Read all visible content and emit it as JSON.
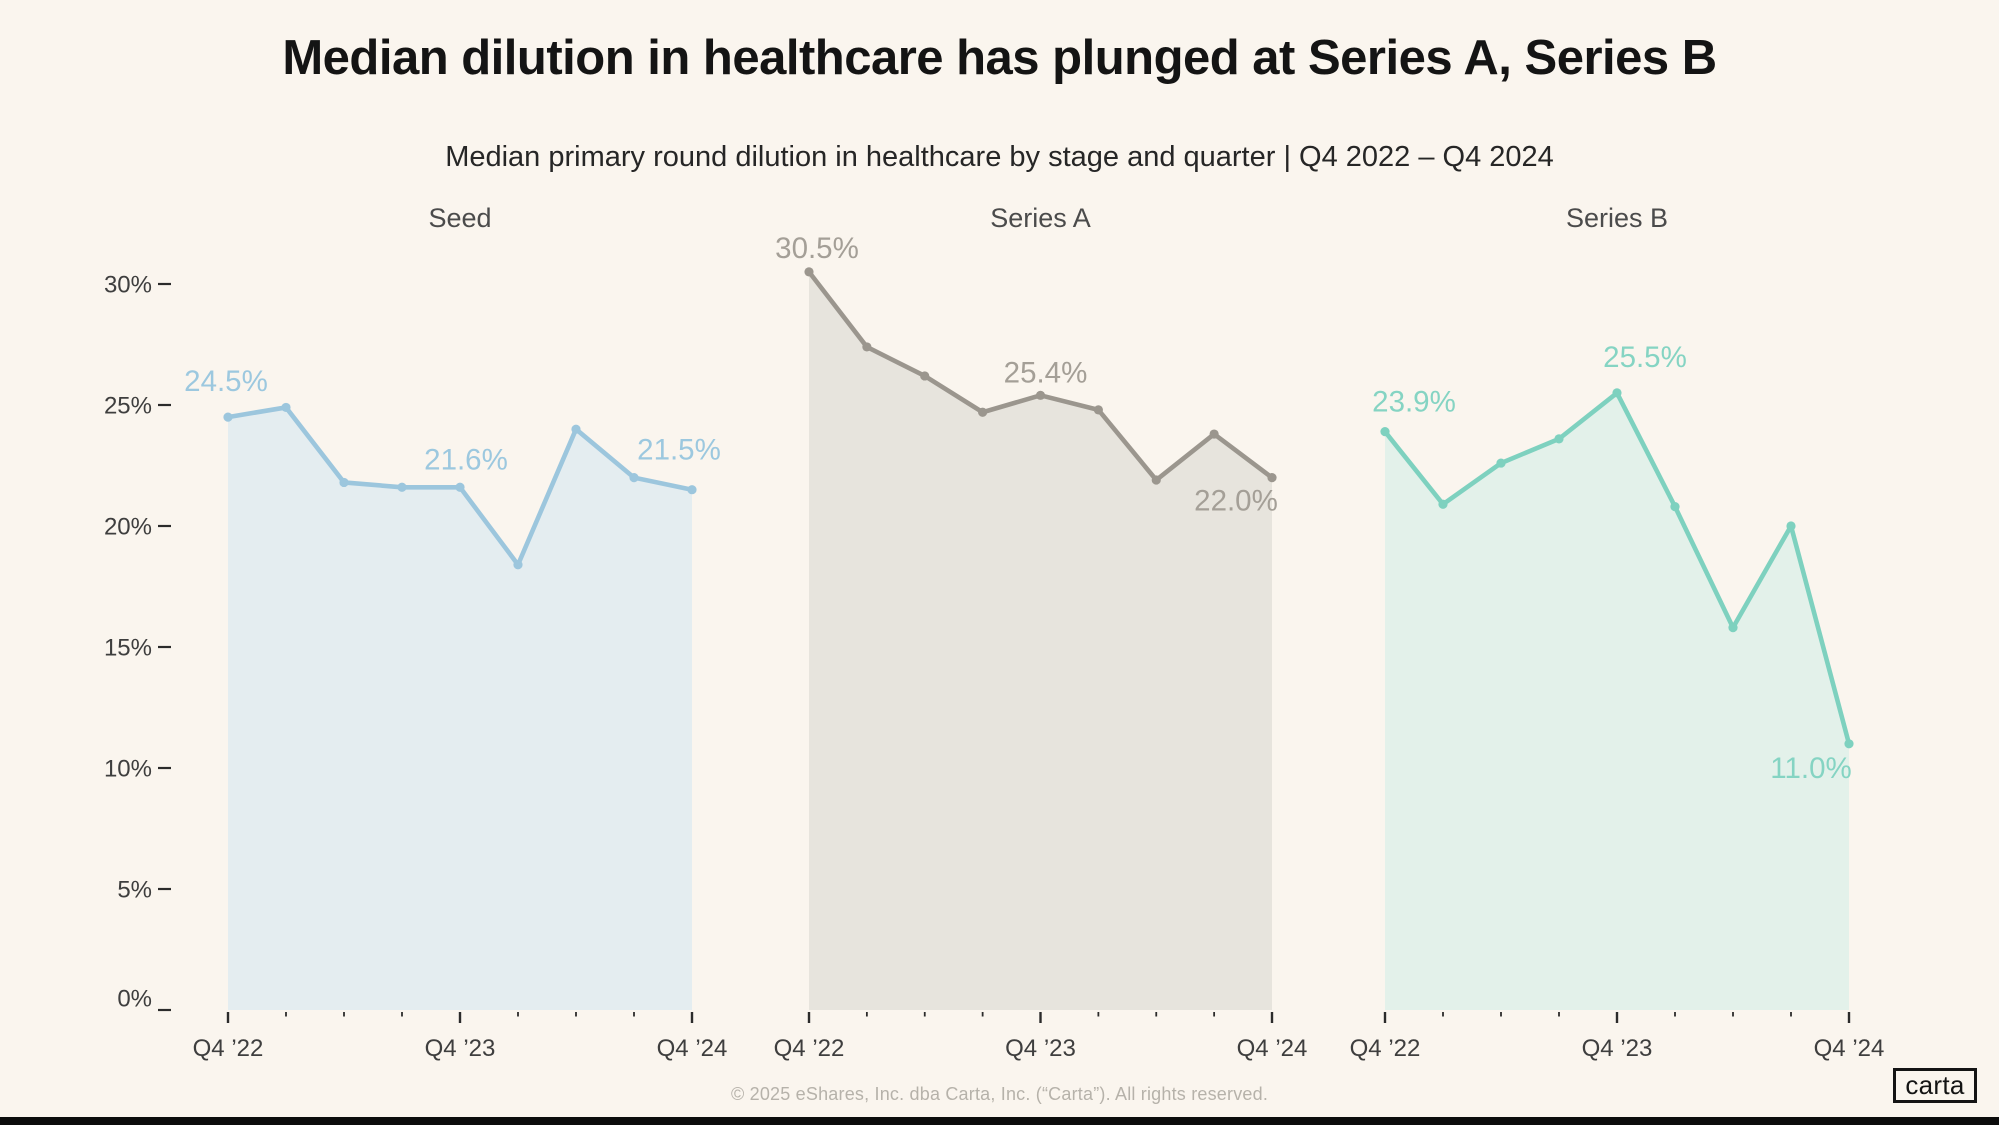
{
  "page": {
    "title": "Median dilution in healthcare has plunged at Series A, Series B",
    "subtitle": "Median primary round dilution in healthcare by stage and quarter | Q4 2022 – Q4 2024",
    "footer": "© 2025 eShares, Inc. dba Carta, Inc. (“Carta”). All rights reserved.",
    "logo_text": "carta"
  },
  "colors": {
    "background": "#FAF5EE",
    "title_color": "#141414",
    "subtitle_color": "#262626",
    "panel_title_color": "#4B4B4B",
    "axis_label_color": "#3E3E3E",
    "tick_color": "#2B2B2B",
    "footer_color": "#B6B2AA",
    "bottom_bar_color": "#0C0C0C"
  },
  "chart_data": {
    "type": "area",
    "title": "Median dilution in healthcare has plunged at Series A, Series B",
    "subtitle": "Median primary round dilution in healthcare by stage and quarter | Q4 2022 – Q4 2024",
    "x": [
      "Q4 ’22",
      "Q1 ’23",
      "Q2 ’23",
      "Q3 ’23",
      "Q4 ’23",
      "Q1 ’24",
      "Q2 ’24",
      "Q3 ’24",
      "Q4 ’24"
    ],
    "x_axis_shown_labels": [
      "Q4 ’22",
      "Q4 ’23",
      "Q4 ’24"
    ],
    "y_tick_labels": [
      "30%",
      "25%",
      "20%",
      "15%",
      "10%",
      "5%",
      "0%"
    ],
    "y_ticks": [
      30,
      25,
      20,
      15,
      10,
      5,
      0
    ],
    "ylim": [
      0,
      31
    ],
    "grid": false,
    "legend": "none (small multiples with panel titles)",
    "unit": "percent",
    "series": [
      {
        "name": "Seed",
        "line_color": "#9CC6DD",
        "fill_color": "#E4EDF0",
        "label_color": "#9CC8DF",
        "values": [
          24.5,
          24.9,
          21.8,
          21.6,
          21.6,
          18.4,
          24.0,
          22.0,
          21.5
        ],
        "point_labels": {
          "0": "24.5%",
          "4": "21.6%",
          "8": "21.5%"
        }
      },
      {
        "name": "Series A",
        "line_color": "#9B968E",
        "fill_color": "#E7E4DD",
        "label_color": "#A49F97",
        "values": [
          30.5,
          27.4,
          26.2,
          24.7,
          25.4,
          24.8,
          21.9,
          23.8,
          22.0
        ],
        "point_labels": {
          "0": "30.5%",
          "4": "25.4%",
          "8": "22.0%"
        }
      },
      {
        "name": "Series B",
        "line_color": "#7ED1BF",
        "fill_color": "#E3F1EA",
        "label_color": "#85D4C3",
        "values": [
          23.9,
          20.9,
          22.6,
          23.6,
          25.5,
          20.8,
          15.8,
          20.0,
          11.0
        ],
        "point_labels": {
          "0": "23.9%",
          "4": "25.5%",
          "8": "11.0%"
        }
      }
    ]
  }
}
